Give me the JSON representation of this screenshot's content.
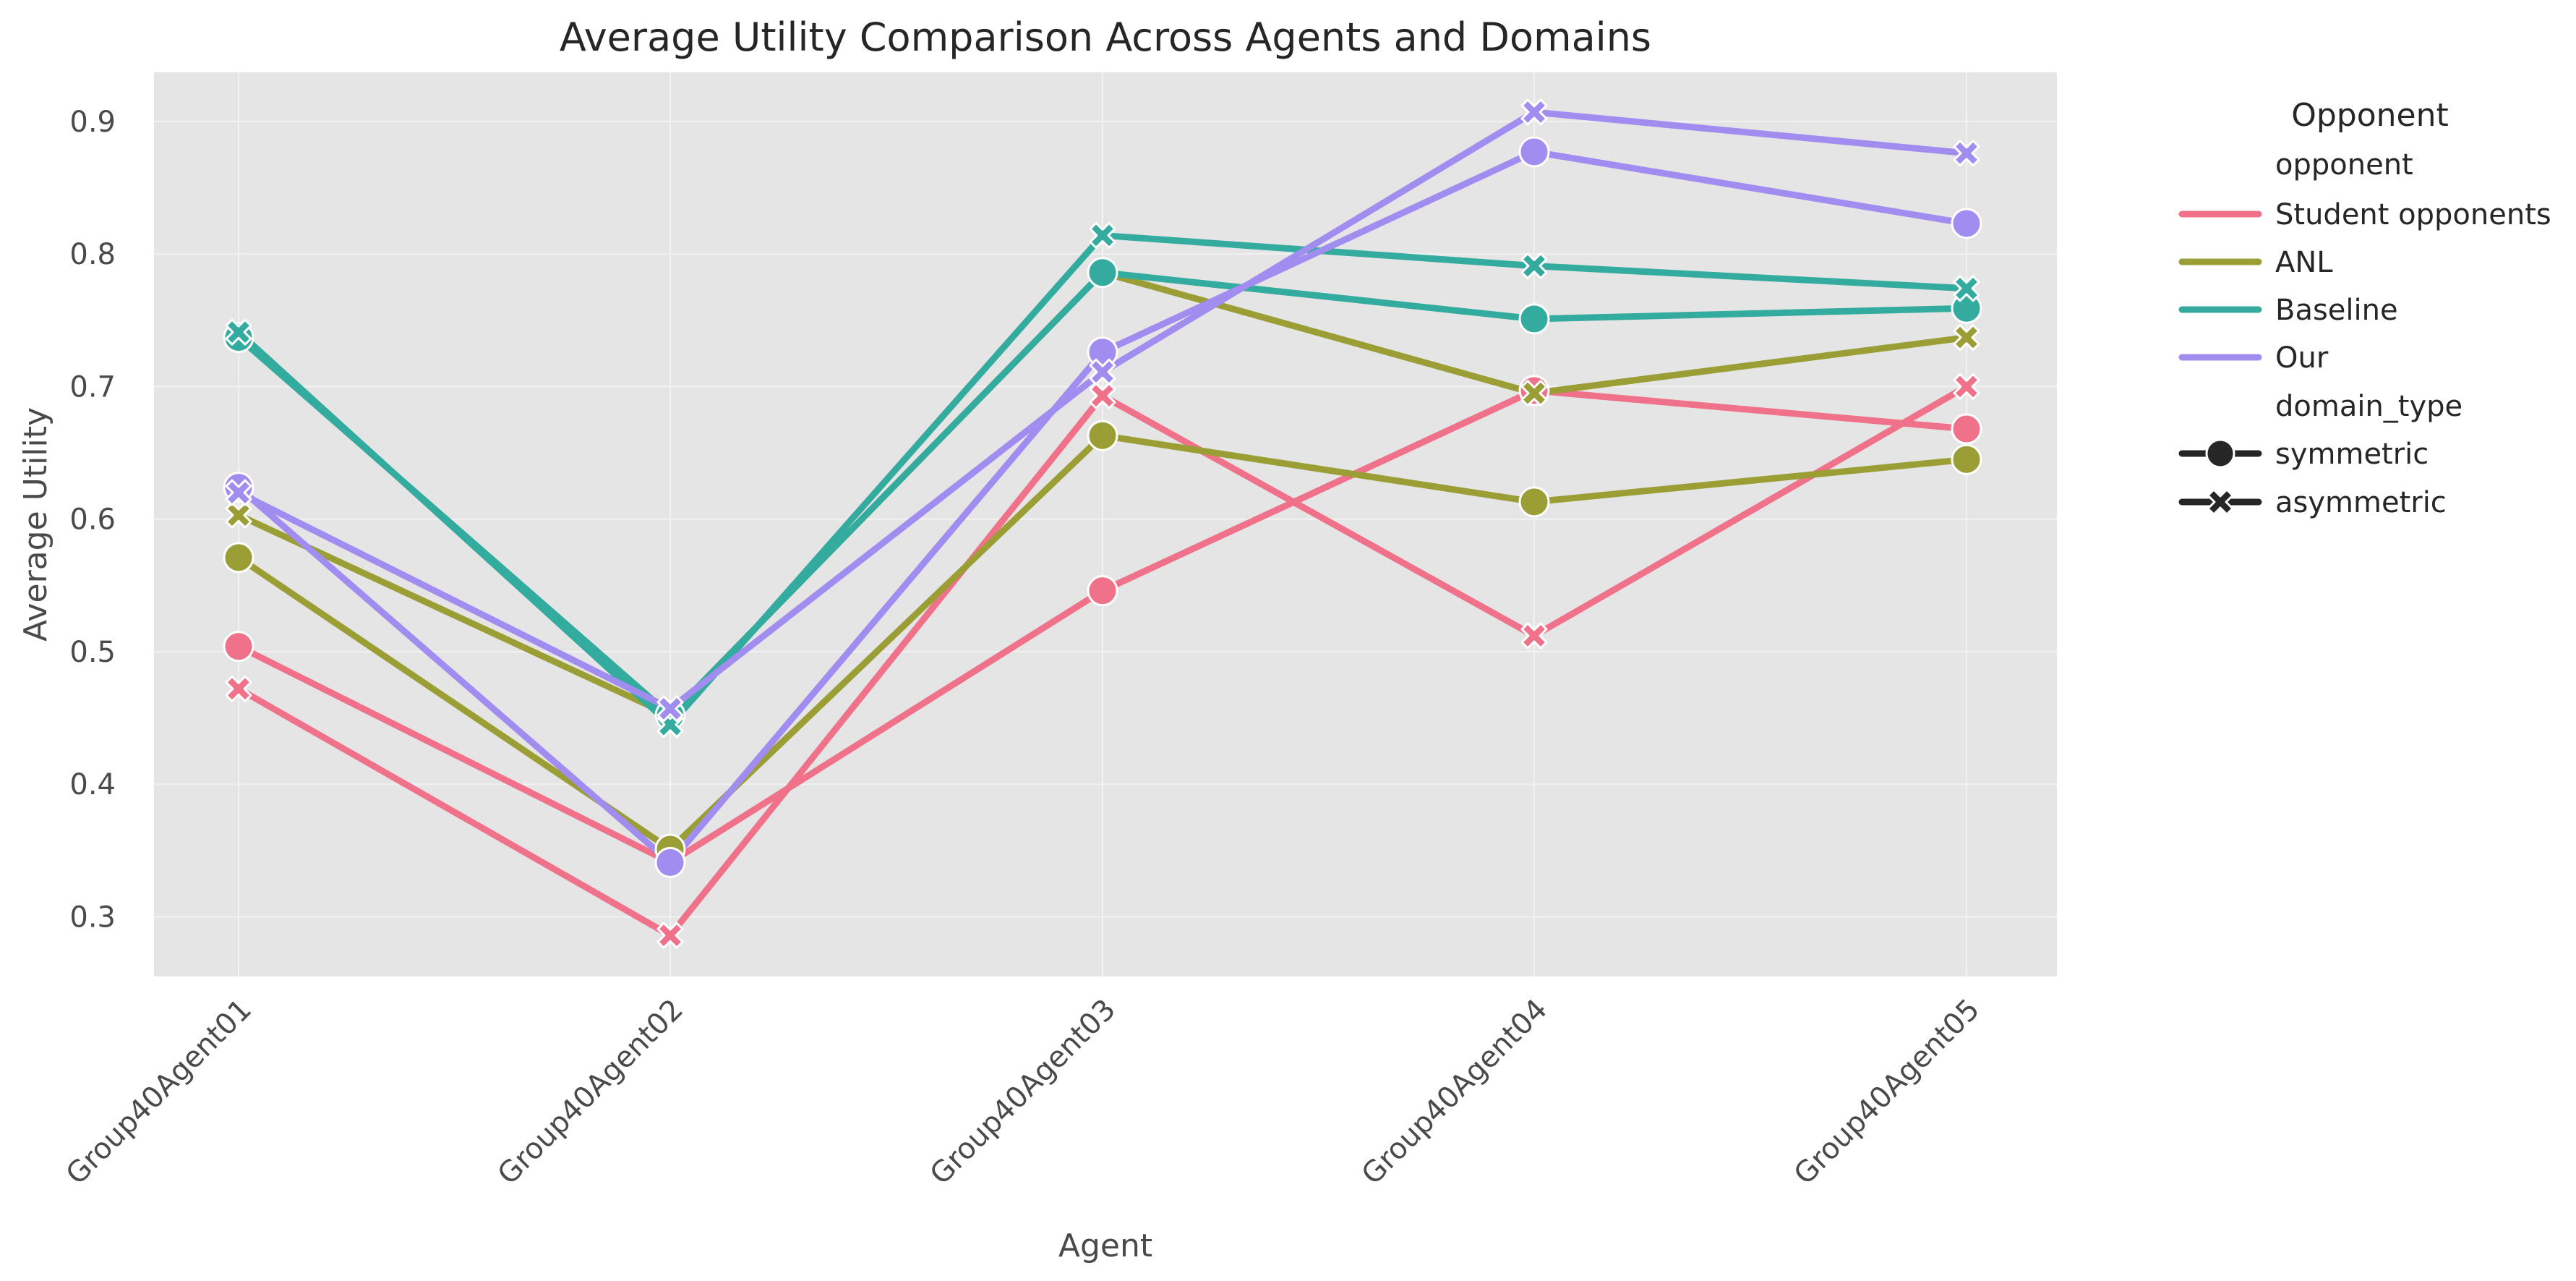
{
  "chart_data": {
    "type": "line",
    "title": "Average Utility Comparison Across Agents and Domains",
    "xlabel": "Agent",
    "ylabel": "Average Utility",
    "categories": [
      "Group40Agent01",
      "Group40Agent02",
      "Group40Agent03",
      "Group40Agent04",
      "Group40Agent05"
    ],
    "ylim": [
      0.255,
      0.937
    ],
    "yticks": [
      "0.3",
      "0.4",
      "0.5",
      "0.6",
      "0.7",
      "0.8",
      "0.9"
    ],
    "grid": true,
    "legend": {
      "placement": "outside-right",
      "title": "Opponent",
      "hue_title": "opponent",
      "style_title": "domain_type",
      "hue_entries": [
        "Student opponents",
        "ANL",
        "Baseline",
        "Our"
      ],
      "style_entries": [
        "symmetric",
        "asymmetric"
      ]
    },
    "colors": {
      "Student opponents": "#f0718a",
      "ANL": "#9a9e35",
      "Baseline": "#33ab9f",
      "Our": "#a18cf0"
    },
    "series": [
      {
        "name": "Student opponents",
        "domain_type": "symmetric",
        "values": [
          0.504,
          0.341,
          0.546,
          0.697,
          0.668
        ]
      },
      {
        "name": "Student opponents",
        "domain_type": "asymmetric",
        "values": [
          0.472,
          0.286,
          0.693,
          0.512,
          0.7
        ]
      },
      {
        "name": "ANL",
        "domain_type": "symmetric",
        "values": [
          0.571,
          0.351,
          0.663,
          0.613,
          0.645
        ]
      },
      {
        "name": "ANL",
        "domain_type": "asymmetric",
        "values": [
          0.603,
          0.452,
          0.786,
          0.695,
          0.737
        ]
      },
      {
        "name": "Baseline",
        "domain_type": "symmetric",
        "values": [
          0.737,
          0.452,
          0.786,
          0.751,
          0.759
        ]
      },
      {
        "name": "Baseline",
        "domain_type": "asymmetric",
        "values": [
          0.741,
          0.445,
          0.814,
          0.791,
          0.774
        ]
      },
      {
        "name": "Our",
        "domain_type": "symmetric",
        "values": [
          0.624,
          0.341,
          0.726,
          0.877,
          0.823
        ]
      },
      {
        "name": "Our",
        "domain_type": "asymmetric",
        "values": [
          0.62,
          0.457,
          0.711,
          0.907,
          0.876
        ]
      }
    ]
  }
}
